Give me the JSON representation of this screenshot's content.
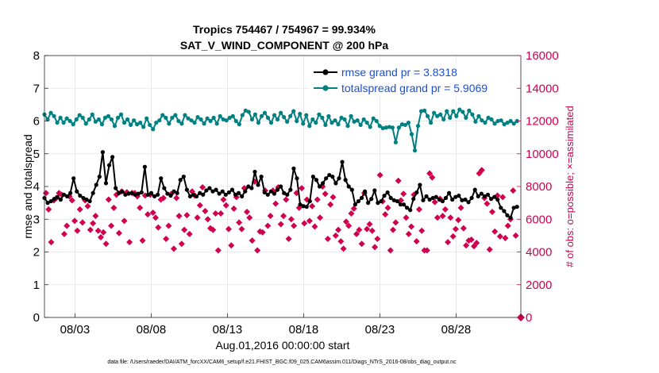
{
  "chart_data": {
    "type": "line",
    "title_line1": "Tropics 754467 / 754967 = 99.934%",
    "title_line2": "SAT_V_WIND_COMPONENT @ 200 hPa",
    "xlabel": "Aug.01,2016 00:00:00 start",
    "ylabel_left": "rmse and totalspread",
    "ylabel_right": "# of obs: o=possible; ×=assimilated",
    "footer": "data file: /Users/raeder/DAI/ATM_forcXX/CAM6_setup/f.e21.FHIST_BGC.f09_025.CAM6assim.011/Diags_NTrS_2016-08/obs_diag_output.nc",
    "xlim": [
      0,
      31.25
    ],
    "ylim_left": [
      0,
      8
    ],
    "ylim_right": [
      0,
      16000
    ],
    "x_ticks": [
      {
        "value": 2,
        "label": "08/03"
      },
      {
        "value": 7,
        "label": "08/08"
      },
      {
        "value": 12,
        "label": "08/13"
      },
      {
        "value": 17,
        "label": "08/18"
      },
      {
        "value": 22,
        "label": "08/23"
      },
      {
        "value": 27,
        "label": "08/28"
      }
    ],
    "y_left_ticks": [
      "0",
      "1",
      "2",
      "3",
      "4",
      "5",
      "6",
      "7",
      "8"
    ],
    "y_right_ticks": [
      "0",
      "2000",
      "4000",
      "6000",
      "8000",
      "10000",
      "12000",
      "14000",
      "16000"
    ],
    "colors": {
      "rmse": "#000000",
      "spread": "#008080",
      "obs": "#d0004e",
      "legend_text": "#1a4fd6"
    },
    "series": [
      {
        "name": "rmse grand pr = 3.8318",
        "values": [
          3.65,
          3.5,
          3.55,
          3.62,
          3.68,
          3.6,
          3.75,
          3.7,
          3.8,
          4.25,
          3.85,
          3.72,
          3.65,
          3.6,
          3.55,
          3.8,
          4.05,
          4.3,
          5.05,
          4.1,
          4.65,
          4.9,
          3.95,
          3.8,
          3.85,
          3.75,
          3.78,
          3.8,
          3.75,
          3.78,
          3.82,
          4.6,
          3.75,
          3.8,
          3.7,
          3.75,
          4.25,
          3.95,
          3.78,
          3.72,
          3.85,
          3.8,
          4.2,
          4.3,
          3.9,
          3.7,
          3.75,
          3.7,
          3.8,
          3.75,
          3.88,
          3.95,
          3.85,
          3.9,
          3.78,
          3.85,
          3.75,
          3.82,
          3.9,
          3.75,
          3.8,
          3.7,
          3.85,
          4.0,
          3.95,
          4.45,
          4.05,
          4.3,
          3.82,
          3.75,
          3.85,
          3.78,
          3.9,
          4.0,
          3.8,
          3.75,
          3.9,
          4.55,
          4.25,
          3.45,
          3.4,
          3.38,
          3.55,
          4.3,
          4.2,
          4.0,
          4.1,
          4.25,
          4.35,
          4.3,
          4.1,
          4.25,
          4.75,
          4.2,
          4.0,
          3.9,
          3.45,
          3.55,
          3.65,
          3.85,
          3.5,
          3.62,
          3.88,
          3.5,
          3.55,
          3.72,
          3.82,
          3.65,
          3.58,
          3.55,
          3.45,
          3.45,
          3.35,
          3.28,
          3.62,
          3.82,
          4.05,
          3.58,
          3.7,
          3.6,
          3.65,
          3.68,
          3.6,
          3.55,
          3.65,
          3.8,
          3.6,
          3.68,
          3.72,
          3.58,
          3.6,
          3.52,
          3.65,
          3.9,
          3.7,
          3.78,
          3.7,
          3.75,
          3.62,
          3.68,
          3.6,
          3.35,
          3.25,
          3.12,
          3.05,
          3.35,
          3.38
        ]
      },
      {
        "name": "totalspread grand pr = 5.9069",
        "values": [
          6.2,
          6.05,
          6.25,
          6.15,
          5.95,
          6.1,
          5.95,
          6.08,
          6.0,
          5.9,
          6.05,
          6.18,
          6.1,
          5.92,
          6.05,
          6.2,
          5.98,
          6.05,
          5.9,
          6.1,
          6.15,
          6.05,
          5.85,
          6.1,
          6.2,
          5.95,
          6.05,
          5.88,
          6.02,
          5.9,
          5.95,
          5.82,
          6.08,
          5.88,
          5.75,
          5.95,
          6.02,
          6.18,
          6.1,
          5.92,
          6.1,
          6.18,
          6.0,
          5.92,
          6.18,
          6.08,
          6.02,
          5.95,
          6.12,
          6.05,
          5.92,
          6.08,
          6.0,
          6.1,
          5.92,
          6.15,
          6.05,
          6.02,
          6.1,
          6.15,
          6.0,
          5.9,
          6.18,
          6.32,
          6.28,
          6.05,
          6.2,
          5.95,
          6.15,
          6.25,
          6.1,
          5.95,
          6.18,
          6.05,
          6.25,
          6.12,
          5.98,
          6.15,
          6.3,
          6.0,
          6.22,
          5.92,
          6.18,
          5.85,
          6.05,
          5.95,
          6.2,
          6.1,
          5.88,
          6.15,
          5.95,
          6.02,
          5.9,
          6.1,
          6.05,
          5.85,
          6.15,
          5.98,
          6.02,
          5.88,
          6.05,
          5.95,
          5.82,
          6.08,
          6.0,
          5.85,
          5.78,
          5.8,
          5.82,
          5.8,
          5.35,
          5.8,
          5.9,
          5.88,
          5.95,
          5.6,
          5.1,
          5.85,
          6.3,
          6.32,
          6.15,
          5.95,
          6.25,
          6.15,
          6.2,
          6.05,
          6.3,
          6.1,
          6.3,
          6.15,
          6.35,
          6.28,
          6.1,
          6.32,
          6.2,
          5.98,
          6.15,
          6.02,
          5.95,
          6.1,
          6.05,
          5.92,
          6.0,
          6.02,
          5.9,
          5.95,
          6.0,
          5.92,
          6.0
        ]
      },
      {
        "name": "obs possible / assimilated",
        "values": [
          7600,
          6600,
          4600,
          7150,
          7300,
          7600,
          7500,
          5100,
          5600,
          7400,
          7150,
          5900,
          5300,
          6600,
          5800,
          7150,
          6800,
          5350,
          5750,
          6200,
          5300,
          4900,
          5200,
          4500,
          7200,
          5600,
          6700,
          7500,
          5150,
          7700,
          5900,
          7650,
          4600,
          7600,
          7600,
          7400,
          6700,
          4700,
          7450,
          6300,
          7500,
          6400,
          6100,
          5500,
          7200,
          7300,
          4800,
          5600,
          7550,
          4200,
          7300,
          6200,
          4500,
          5350,
          6250,
          5100,
          7700,
          7450,
          6100,
          6850,
          7950,
          6500,
          6000,
          5450,
          5350,
          6350,
          4100,
          6350,
          7200,
          6850,
          5400,
          4400,
          6650,
          7350,
          5800,
          5400,
          7900,
          6450,
          6100,
          4700,
          8300,
          4100,
          5250,
          5200,
          7750,
          5600,
          6200,
          7750,
          6950,
          7950,
          5700,
          6200,
          7200,
          4800,
          6000,
          5600,
          7600,
          6700,
          7900,
          5750,
          7200,
          5900,
          6800,
          5550,
          7200,
          6100,
          8000,
          7550,
          4800,
          6900,
          7350,
          5000,
          5350,
          4650,
          4200,
          5850,
          5600,
          6350,
          6650,
          5100,
          5350,
          4500,
          7600,
          5400,
          5700,
          5300,
          4300,
          4800,
          8700,
          7100,
          6300,
          6700,
          4100,
          5350,
          5800,
          8350,
          7150,
          7550,
          6100,
          5100,
          5550,
          7500,
          4650,
          6600,
          5300,
          4100,
          4100,
          8800,
          8550,
          7050,
          6100,
          7250,
          6200,
          6600,
          4600,
          6100,
          4950,
          5400,
          5950,
          6700,
          5450,
          4400,
          4700,
          4750,
          4350,
          4550,
          8800,
          9000,
          7300,
          6950,
          4150,
          6450,
          5250,
          7450,
          4950,
          7350,
          4850,
          5600,
          6000,
          7750,
          5000
        ]
      }
    ]
  }
}
